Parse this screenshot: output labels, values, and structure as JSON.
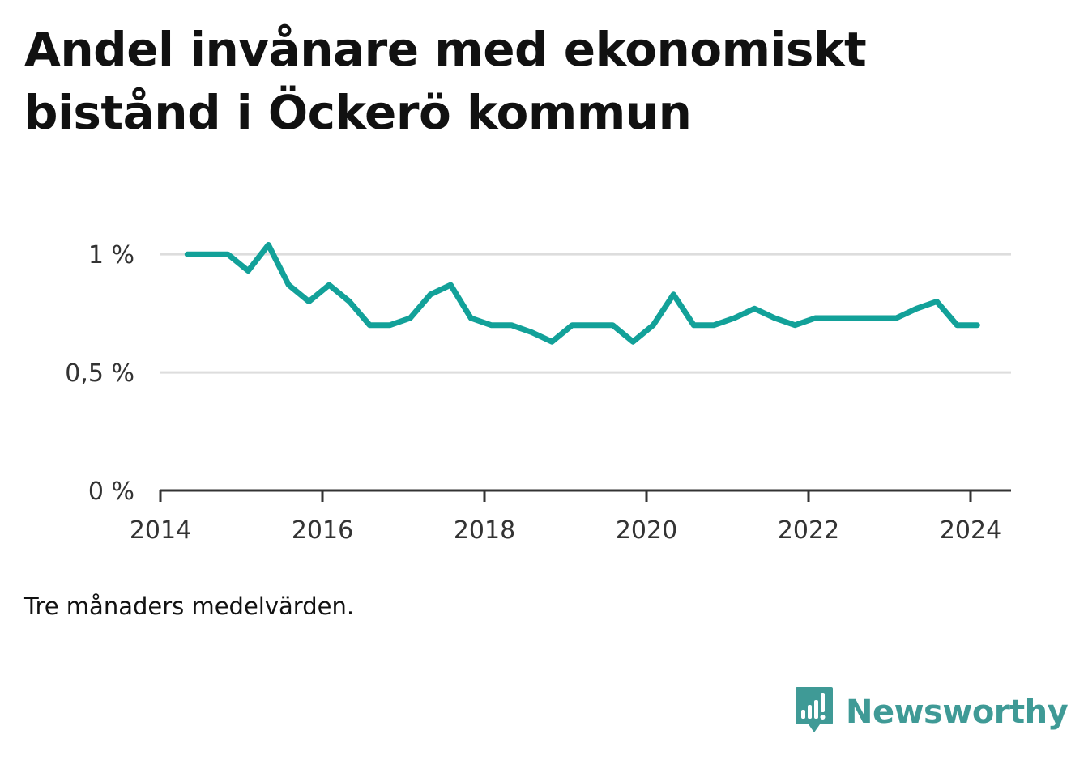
{
  "title": "Andel invånare med ekonomiskt bistånd i Öckerö kommun",
  "note": "Tre månaders medelvärden.",
  "brand": {
    "name": "Newsworthy",
    "icon": "bar-chart-speech-bubble-icon"
  },
  "colors": {
    "line": "#12a199",
    "brand": "#3f9a96",
    "grid": "#dddddd",
    "axis": "#333333"
  },
  "chart_data": {
    "type": "line",
    "title": "Andel invånare med ekonomiskt bistånd i Öckerö kommun",
    "xlabel": "",
    "ylabel": "",
    "ylim": [
      0,
      1.1
    ],
    "xlim": [
      "2014-01",
      "2024-07"
    ],
    "y_ticks": [
      {
        "value": 0,
        "label": "0 %"
      },
      {
        "value": 0.5,
        "label": "0,5 %"
      },
      {
        "value": 1,
        "label": "1 %"
      }
    ],
    "x_ticks": [
      {
        "value": "2014-01",
        "label": "2014"
      },
      {
        "value": "2016-01",
        "label": "2016"
      },
      {
        "value": "2018-01",
        "label": "2018"
      },
      {
        "value": "2020-01",
        "label": "2020"
      },
      {
        "value": "2022-01",
        "label": "2022"
      },
      {
        "value": "2024-01",
        "label": "2024"
      }
    ],
    "grid": true,
    "series": [
      {
        "x": [
          "2014-05",
          "2014-08",
          "2014-11",
          "2015-02",
          "2015-05",
          "2015-08",
          "2015-11",
          "2016-02",
          "2016-05",
          "2016-08",
          "2016-11",
          "2017-02",
          "2017-05",
          "2017-08",
          "2017-11",
          "2018-02",
          "2018-05",
          "2018-08",
          "2018-11",
          "2019-02",
          "2019-05",
          "2019-08",
          "2019-11",
          "2020-02",
          "2020-05",
          "2020-08",
          "2020-11",
          "2021-02",
          "2021-05",
          "2021-08",
          "2021-11",
          "2022-02",
          "2022-05",
          "2022-08",
          "2022-11",
          "2023-02",
          "2023-05",
          "2023-08",
          "2023-11",
          "2024-02"
        ],
        "values": [
          1.0,
          1.0,
          1.0,
          0.93,
          1.04,
          0.87,
          0.8,
          0.87,
          0.8,
          0.7,
          0.7,
          0.73,
          0.83,
          0.87,
          0.73,
          0.7,
          0.7,
          0.67,
          0.63,
          0.7,
          0.7,
          0.7,
          0.63,
          0.7,
          0.83,
          0.7,
          0.7,
          0.73,
          0.77,
          0.73,
          0.7,
          0.73,
          0.73,
          0.73,
          0.73,
          0.73,
          0.77,
          0.8,
          0.7,
          0.7
        ]
      }
    ]
  }
}
